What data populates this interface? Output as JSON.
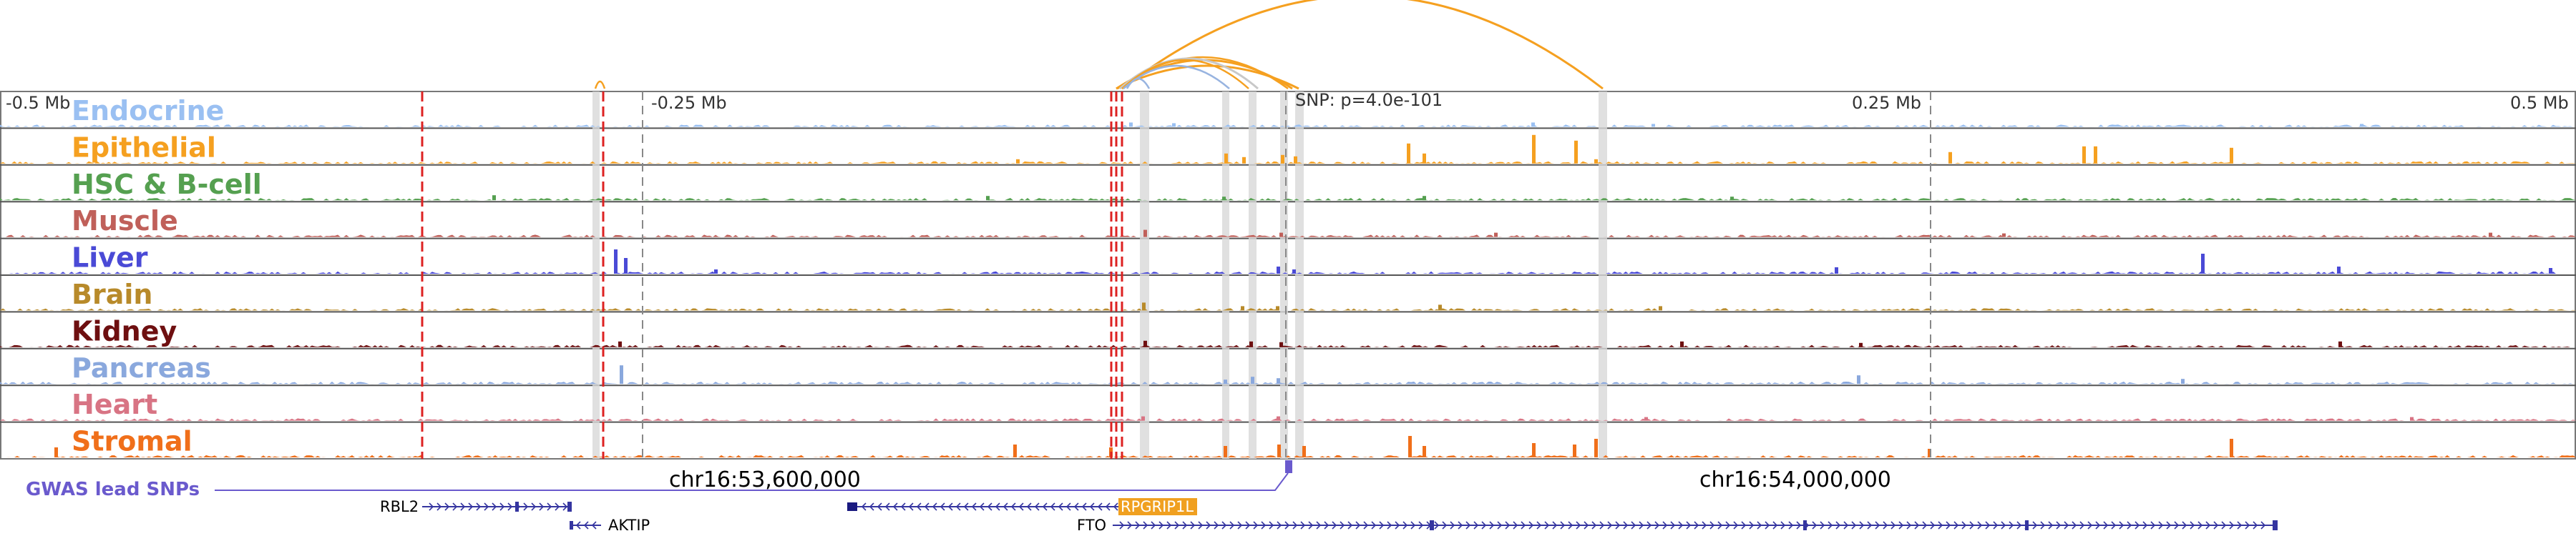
{
  "colors": {
    "gwas": "#6a5acd",
    "gene": "#3535a0",
    "highlight_gene_bg": "#f0a020",
    "peak_marker": "#dd2222",
    "arc_orange": "#f5a020",
    "arc_blue": "#98b4e0",
    "arc_grey": "#c8c8c8"
  },
  "axis": {
    "left_label": "-0.5 Mb",
    "mid_left_label": "-0.25 Mb",
    "snp_label": "SNP: p=4.0e-101",
    "mid_right_label": "0.25 Mb",
    "right_label": "0.5 Mb"
  },
  "tracks": [
    {
      "name": "Endocrine",
      "color": "#9ac0f2"
    },
    {
      "name": "Epithelial",
      "color": "#f5a020"
    },
    {
      "name": "HSC & B-cell",
      "color": "#55a050"
    },
    {
      "name": "Muscle",
      "color": "#c0605a"
    },
    {
      "name": "Liver",
      "color": "#4a4ad6"
    },
    {
      "name": "Brain",
      "color": "#b88a2a"
    },
    {
      "name": "Kidney",
      "color": "#6e0f10"
    },
    {
      "name": "Pancreas",
      "color": "#8aa8dd"
    },
    {
      "name": "Heart",
      "color": "#d87484"
    },
    {
      "name": "Stromal",
      "color": "#f06f1a"
    }
  ],
  "gwas_label": "GWAS lead SNPs",
  "coordinates": {
    "left": "chr16:53,600,000",
    "right": "chr16:54,000,000"
  },
  "genes": [
    {
      "name": "RBL2",
      "strand": "+",
      "highlight": false
    },
    {
      "name": "AKTIP",
      "strand": "-",
      "highlight": false
    },
    {
      "name": "RPGRIP1L",
      "strand": "-",
      "highlight": true
    },
    {
      "name": "FTO",
      "strand": "+",
      "highlight": false
    }
  ]
}
